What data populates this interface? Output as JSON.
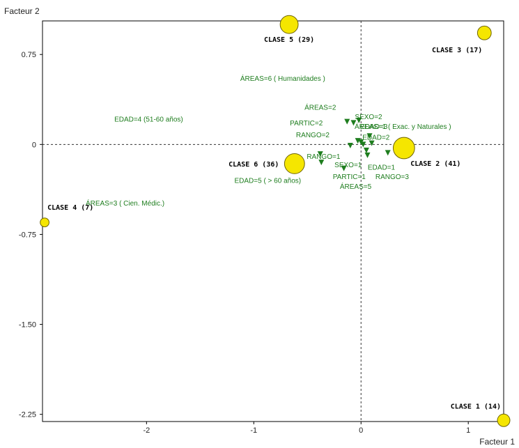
{
  "chart_data": {
    "type": "scatter",
    "xlabel": "Facteur 1",
    "ylabel": "Facteur 2",
    "xlim": [
      -2.97,
      1.33
    ],
    "ylim": [
      -2.31,
      1.03
    ],
    "x_ticks": [
      {
        "value": -2,
        "label": "-2"
      },
      {
        "value": -1,
        "label": "-1"
      },
      {
        "value": 0,
        "label": "0"
      },
      {
        "value": 1,
        "label": "1"
      }
    ],
    "y_ticks": [
      {
        "value": 0.75,
        "label": "0.75"
      },
      {
        "value": 0,
        "label": "0"
      },
      {
        "value": -0.75,
        "label": "-0.75"
      },
      {
        "value": -1.5,
        "label": "-1.50"
      },
      {
        "value": -2.25,
        "label": "-2.25"
      }
    ],
    "grid": false,
    "reference_lines": {
      "x": 0,
      "y": 0,
      "style": "dashed"
    },
    "colors": {
      "classes": "#f5e600",
      "class_stroke": "#6e6400",
      "modalities": "#1e7d1e",
      "axes": "#000000"
    },
    "classes": [
      {
        "label": "CLASE 1 (14)",
        "x": 1.33,
        "y": -2.3,
        "size": 14,
        "label_pos": "top-left"
      },
      {
        "label": "CLASE 2 (41)",
        "x": 0.4,
        "y": -0.03,
        "size": 41,
        "label_pos": "below-right"
      },
      {
        "label": "CLASE 3 (17)",
        "x": 1.15,
        "y": 0.93,
        "size": 17,
        "label_pos": "below-left"
      },
      {
        "label": "CLASE 4 (7)",
        "x": -2.95,
        "y": -0.65,
        "size": 7,
        "label_pos": "top-right"
      },
      {
        "label": "CLASE 5 (29)",
        "x": -0.67,
        "y": 1.0,
        "size": 29,
        "label_pos": "below"
      },
      {
        "label": "CLASE 6 (36)",
        "x": -0.62,
        "y": -0.16,
        "size": 36,
        "label_pos": "left"
      }
    ],
    "modality_labels": [
      {
        "text": "ÁREAS=6 ( Humanidades )",
        "x": -0.73,
        "y": 0.53
      },
      {
        "text": "ÁREAS=2",
        "x": -0.38,
        "y": 0.29
      },
      {
        "text": "EDAD=4 (51-60 años)",
        "x": -1.98,
        "y": 0.19
      },
      {
        "text": "SEXO=2",
        "x": 0.07,
        "y": 0.21
      },
      {
        "text": "PARTIC=2",
        "x": -0.51,
        "y": 0.16
      },
      {
        "text": "EDAD=3",
        "x": 0.12,
        "y": 0.13
      },
      {
        "text": "ÁREAS=1 ( Exac. y Naturales )",
        "x": 0.39,
        "y": 0.13
      },
      {
        "text": "RANGO=2",
        "x": -0.45,
        "y": 0.06
      },
      {
        "text": "EDAD=2",
        "x": 0.14,
        "y": 0.04
      },
      {
        "text": "RANGO=1",
        "x": -0.35,
        "y": -0.12
      },
      {
        "text": "SEXO=1",
        "x": -0.12,
        "y": -0.19
      },
      {
        "text": "EDAD=1",
        "x": 0.19,
        "y": -0.21
      },
      {
        "text": "PARTIC=1",
        "x": -0.11,
        "y": -0.29
      },
      {
        "text": "RANGO=3",
        "x": 0.29,
        "y": -0.29
      },
      {
        "text": "EDAD=5 ( > 60 años)",
        "x": -0.87,
        "y": -0.32
      },
      {
        "text": "ÁREAS=5",
        "x": -0.05,
        "y": -0.37
      },
      {
        "text": "ÁREAS=3 ( Cien. Médic.)",
        "x": -2.2,
        "y": -0.51
      }
    ],
    "modality_points": [
      {
        "x": -0.13,
        "y": 0.19
      },
      {
        "x": -0.07,
        "y": 0.18
      },
      {
        "x": -0.02,
        "y": 0.2
      },
      {
        "x": 0.08,
        "y": 0.07
      },
      {
        "x": 0.1,
        "y": 0.01
      },
      {
        "x": -0.03,
        "y": 0.03
      },
      {
        "x": 0.0,
        "y": 0.02
      },
      {
        "x": 0.02,
        "y": 0.0
      },
      {
        "x": -0.1,
        "y": -0.01
      },
      {
        "x": 0.05,
        "y": -0.05
      },
      {
        "x": 0.06,
        "y": -0.09
      },
      {
        "x": -0.38,
        "y": -0.08
      },
      {
        "x": -0.37,
        "y": -0.15
      },
      {
        "x": -0.16,
        "y": -0.2
      },
      {
        "x": 0.25,
        "y": -0.07
      }
    ]
  }
}
